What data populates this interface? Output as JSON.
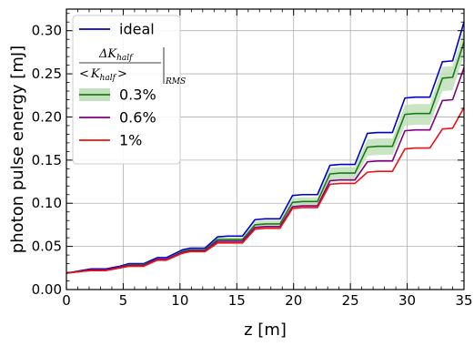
{
  "chart_data": {
    "type": "line",
    "title": "",
    "xlabel": "z [m]",
    "ylabel": "photon pulse energy [mJ]",
    "xlim": [
      0,
      35
    ],
    "ylim": [
      0.0,
      0.325
    ],
    "x_ticks": [
      0,
      5,
      10,
      15,
      20,
      25,
      30,
      35
    ],
    "x_tick_labels": [
      "0",
      "5",
      "10",
      "15",
      "20",
      "25",
      "30",
      "35"
    ],
    "y_ticks": [
      0.0,
      0.05,
      0.1,
      0.15,
      0.2,
      0.25,
      0.3
    ],
    "y_tick_labels": [
      "0.00",
      "0.05",
      "0.10",
      "0.15",
      "0.20",
      "0.25",
      "0.30"
    ],
    "grid": true,
    "legend_placement": "top-left",
    "legend_title": {
      "numerator": "ΔK",
      "numerator_sub": "half",
      "denominator_left": "<",
      "denominator_var": "K",
      "denominator_sub": "half",
      "denominator_right": ">",
      "suffix_sub": "RMS"
    },
    "x": [
      0,
      1.3,
      2.2,
      3.5,
      4.7,
      5.5,
      6.8,
      8.0,
      8.8,
      10.2,
      10.9,
      12.2,
      13.3,
      14.2,
      15.5,
      16.6,
      17.5,
      18.8,
      19.9,
      20.8,
      22.1,
      23.2,
      24.1,
      25.4,
      26.5,
      27.4,
      28.7,
      29.8,
      30.7,
      32.0,
      33.1,
      34.0,
      35.0
    ],
    "series": [
      {
        "name": "ideal",
        "color": "#0000cc",
        "values": [
          0.019,
          0.022,
          0.024,
          0.024,
          0.027,
          0.03,
          0.03,
          0.037,
          0.037,
          0.046,
          0.048,
          0.048,
          0.061,
          0.062,
          0.062,
          0.081,
          0.082,
          0.082,
          0.109,
          0.11,
          0.11,
          0.144,
          0.145,
          0.145,
          0.181,
          0.182,
          0.182,
          0.222,
          0.223,
          0.223,
          0.264,
          0.265,
          0.31
        ]
      },
      {
        "name": "0.3%",
        "color": "#1a7a1a",
        "band": true,
        "band_color": "#b7dcb0",
        "values": [
          0.019,
          0.021,
          0.023,
          0.023,
          0.026,
          0.029,
          0.029,
          0.035,
          0.035,
          0.044,
          0.046,
          0.046,
          0.058,
          0.058,
          0.058,
          0.075,
          0.076,
          0.076,
          0.101,
          0.102,
          0.102,
          0.134,
          0.135,
          0.135,
          0.165,
          0.166,
          0.166,
          0.203,
          0.204,
          0.204,
          0.245,
          0.246,
          0.287
        ],
        "band_low": [
          0.019,
          0.021,
          0.022,
          0.022,
          0.025,
          0.028,
          0.028,
          0.034,
          0.034,
          0.042,
          0.044,
          0.044,
          0.055,
          0.055,
          0.055,
          0.071,
          0.072,
          0.072,
          0.096,
          0.097,
          0.097,
          0.126,
          0.127,
          0.127,
          0.155,
          0.156,
          0.156,
          0.19,
          0.191,
          0.191,
          0.23,
          0.231,
          0.272
        ],
        "band_high": [
          0.02,
          0.022,
          0.024,
          0.024,
          0.027,
          0.03,
          0.03,
          0.036,
          0.036,
          0.046,
          0.048,
          0.048,
          0.061,
          0.061,
          0.061,
          0.079,
          0.08,
          0.08,
          0.106,
          0.107,
          0.107,
          0.141,
          0.142,
          0.142,
          0.174,
          0.175,
          0.175,
          0.214,
          0.215,
          0.215,
          0.258,
          0.259,
          0.3
        ]
      },
      {
        "name": "0.6%",
        "color": "#800080",
        "values": [
          0.019,
          0.021,
          0.023,
          0.023,
          0.026,
          0.028,
          0.028,
          0.035,
          0.035,
          0.043,
          0.045,
          0.045,
          0.056,
          0.056,
          0.056,
          0.072,
          0.073,
          0.073,
          0.096,
          0.097,
          0.097,
          0.126,
          0.127,
          0.127,
          0.148,
          0.149,
          0.149,
          0.184,
          0.185,
          0.185,
          0.219,
          0.22,
          0.257
        ]
      },
      {
        "name": "1%",
        "color": "#ee1111",
        "values": [
          0.019,
          0.021,
          0.022,
          0.022,
          0.025,
          0.027,
          0.027,
          0.034,
          0.034,
          0.042,
          0.044,
          0.044,
          0.054,
          0.054,
          0.054,
          0.07,
          0.071,
          0.071,
          0.094,
          0.095,
          0.095,
          0.122,
          0.123,
          0.123,
          0.136,
          0.137,
          0.137,
          0.163,
          0.164,
          0.164,
          0.186,
          0.187,
          0.211
        ]
      }
    ]
  }
}
